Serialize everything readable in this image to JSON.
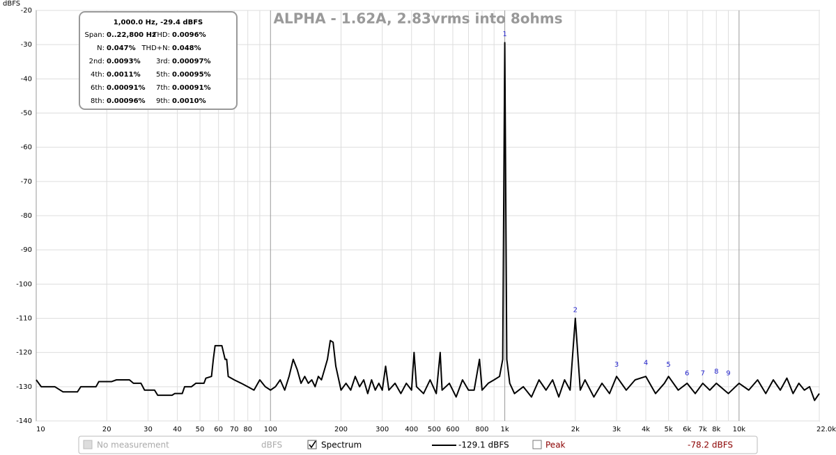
{
  "chart_data": {
    "type": "line",
    "title": "ALPHA - 1.62A, 2.83vrms into 8ohms",
    "y_label": "dBFS",
    "xscale": "log",
    "grid": true,
    "xlim": [
      10,
      22000
    ],
    "ylim": [
      -140,
      -20
    ],
    "xticks": [
      10,
      20,
      30,
      40,
      50,
      60,
      70,
      80,
      100,
      200,
      300,
      400,
      500,
      600,
      800,
      {
        "value": 1000,
        "label": "1k"
      },
      {
        "value": 2000,
        "label": "2k"
      },
      {
        "value": 3000,
        "label": "3k"
      },
      {
        "value": 4000,
        "label": "4k"
      },
      {
        "value": 5000,
        "label": "5k"
      },
      {
        "value": 6000,
        "label": "6k"
      },
      {
        "value": 7000,
        "label": "7k"
      },
      {
        "value": 8000,
        "label": "8k"
      },
      {
        "value": 10000,
        "label": "10k"
      },
      {
        "value": 22000,
        "label": "22.0k Hz"
      }
    ],
    "xminorticks": [
      90,
      700,
      900,
      9000
    ],
    "yticks": [
      -20,
      -30,
      -40,
      -50,
      -60,
      -70,
      -80,
      -90,
      -100,
      -110,
      -120,
      -130,
      -140
    ],
    "series": [
      {
        "name": "Spectrum",
        "color": "#000000",
        "x": [
          10,
          10.5,
          12,
          13,
          15,
          15.5,
          18,
          18.5,
          21,
          22,
          25,
          26,
          28,
          29,
          32,
          33,
          38,
          39,
          42,
          43,
          46,
          48,
          52,
          53,
          56,
          57,
          58,
          62,
          64,
          65,
          66,
          70,
          75,
          80,
          85,
          90,
          95,
          100,
          105,
          110,
          115,
          120,
          125,
          130,
          135,
          140,
          145,
          150,
          155,
          160,
          165,
          170,
          175,
          180,
          185,
          190,
          200,
          210,
          220,
          230,
          240,
          250,
          260,
          270,
          280,
          290,
          300,
          310,
          320,
          340,
          360,
          380,
          400,
          410,
          420,
          450,
          480,
          510,
          530,
          540,
          580,
          620,
          660,
          700,
          740,
          780,
          800,
          850,
          900,
          950,
          980,
          1000,
          1020,
          1050,
          1100,
          1200,
          1300,
          1400,
          1500,
          1600,
          1700,
          1800,
          1900,
          2000,
          2100,
          2200,
          2400,
          2600,
          2800,
          3000,
          3300,
          3600,
          4000,
          4400,
          4800,
          5000,
          5500,
          6000,
          6500,
          7000,
          7500,
          8000,
          9000,
          10000,
          11000,
          12000,
          13000,
          14000,
          15000,
          16000,
          17000,
          18000,
          19000,
          20000,
          21000,
          22000
        ],
        "values": [
          -128,
          -130,
          -130,
          -131.5,
          -131.5,
          -130,
          -130,
          -128.5,
          -128.5,
          -128,
          -128,
          -129,
          -129,
          -131,
          -131,
          -132.5,
          -132.5,
          -132,
          -132,
          -130,
          -130,
          -129,
          -129,
          -127.5,
          -127,
          -122,
          -118,
          -118,
          -122,
          -122,
          -127,
          -128,
          -129,
          -130,
          -131,
          -128,
          -130,
          -131,
          -130,
          -128,
          -131,
          -127,
          -122,
          -125,
          -129,
          -127,
          -129,
          -128,
          -130,
          -127,
          -128,
          -125,
          -122,
          -116.5,
          -117,
          -124,
          -131,
          -129,
          -131,
          -127,
          -130,
          -128,
          -132,
          -128,
          -131,
          -129,
          -131,
          -124,
          -131,
          -129,
          -132,
          -129,
          -131,
          -120,
          -130,
          -132,
          -128,
          -132,
          -120,
          -131,
          -129,
          -133,
          -128,
          -131,
          -131,
          -122,
          -131,
          -129,
          -128,
          -127,
          -122,
          -29.4,
          -122,
          -129,
          -132,
          -130,
          -133,
          -128,
          -131,
          -128,
          -133,
          -128,
          -131,
          -110,
          -131,
          -128,
          -133,
          -129,
          -132,
          -127,
          -131,
          -128,
          -127,
          -132,
          -129,
          -127,
          -131,
          -129,
          -132,
          -129,
          -131,
          -129,
          -132,
          -129,
          -131,
          -128,
          -132,
          -128,
          -131,
          -127.5,
          -132,
          -129,
          -131,
          -130,
          -134,
          -132
        ]
      }
    ],
    "harmonics": [
      {
        "label": "1",
        "x": 1000,
        "y": -29.4
      },
      {
        "label": "2",
        "x": 2000,
        "y": -110
      },
      {
        "label": "3",
        "x": 3000,
        "y": -126
      },
      {
        "label": "4",
        "x": 4000,
        "y": -125.5
      },
      {
        "label": "5",
        "x": 5000,
        "y": -126
      },
      {
        "label": "6",
        "x": 6000,
        "y": -128.5
      },
      {
        "label": "7",
        "x": 7000,
        "y": -128.5
      },
      {
        "label": "8",
        "x": 8000,
        "y": -128
      },
      {
        "label": "9",
        "x": 9000,
        "y": -128.5
      }
    ]
  },
  "info_box": {
    "title": "1,000.0 Hz, -29.4 dBFS",
    "rows": [
      [
        {
          "label": "Span:",
          "value": "0..22,800 Hz"
        },
        {
          "label": "THD:",
          "value": "0.0096%"
        }
      ],
      [
        {
          "label": "N:",
          "value": "0.047%"
        },
        {
          "label": "THD+N:",
          "value": "0.048%"
        }
      ],
      [
        {
          "label": "2nd:",
          "value": "0.0093%"
        },
        {
          "label": "3rd:",
          "value": "0.00097%"
        }
      ],
      [
        {
          "label": "4th:",
          "value": "0.0011%"
        },
        {
          "label": "5th:",
          "value": "0.00095%"
        }
      ],
      [
        {
          "label": "6th:",
          "value": "0.00091%"
        },
        {
          "label": "7th:",
          "value": "0.00091%"
        }
      ],
      [
        {
          "label": "8th:",
          "value": "0.00096%"
        },
        {
          "label": "9th:",
          "value": "0.0010%"
        }
      ]
    ]
  },
  "footer": {
    "no_measurement": "No measurement",
    "no_measurement_unit": "dBFS",
    "spectrum_readout": "-129.1 dBFS",
    "peak": "Peak",
    "peak_readout": "-78.2 dBFS"
  }
}
